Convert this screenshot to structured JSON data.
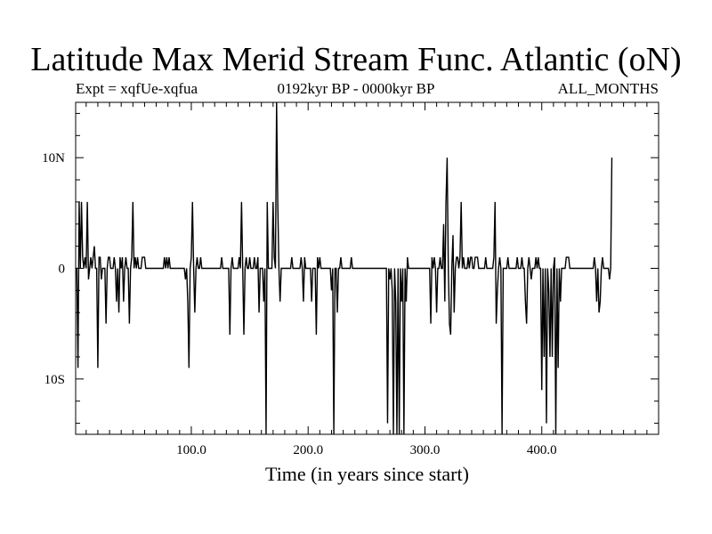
{
  "header": {
    "title": "Latitude Max Merid Stream Func. Atlantic (oN)",
    "experiment": "Expt = xqfUe-xqfua",
    "period": "0192kyr BP - 0000kyr BP",
    "months": "ALL_MONTHS"
  },
  "chart_data": {
    "type": "line",
    "title": "Latitude Max Merid Stream Func. Atlantic (oN)",
    "xlabel": "Time (in years since start)",
    "ylabel": "",
    "xlim": [
      1,
      500
    ],
    "ylim": [
      -15,
      15
    ],
    "x_ticks": [
      100,
      200,
      300,
      400
    ],
    "x_tick_labels": [
      "100.0",
      "200.0",
      "300.0",
      "400.0"
    ],
    "y_ticks": [
      10,
      0,
      -10
    ],
    "y_tick_labels": [
      "10N",
      "0",
      "10S"
    ],
    "grid": false,
    "series": [
      {
        "x_start": 1,
        "x_step": 1,
        "values": [
          0,
          0,
          -9,
          6,
          0,
          6,
          1,
          0,
          1,
          0,
          6,
          -1,
          0,
          1,
          0,
          1,
          2,
          0,
          0,
          -9,
          1,
          1,
          -1,
          0,
          0,
          0,
          -5,
          0,
          1,
          1,
          0,
          0,
          0,
          1,
          0,
          -3,
          0,
          -4,
          1,
          0,
          1,
          -3,
          0,
          1,
          0,
          0,
          -5,
          0,
          1,
          6,
          0,
          1,
          0,
          1,
          0,
          0,
          0,
          1,
          1,
          1,
          0,
          0,
          0,
          0,
          0,
          0,
          0,
          0,
          0,
          0,
          0,
          0,
          0,
          0,
          0,
          0,
          1,
          0,
          1,
          0,
          1,
          0,
          0,
          0,
          0,
          0,
          0,
          0,
          0,
          0,
          0,
          0,
          0,
          0,
          -1,
          0,
          -3,
          -9,
          0,
          1,
          6,
          0,
          -4,
          0,
          1,
          0,
          0,
          1,
          0,
          0,
          0,
          0,
          0,
          0,
          0,
          0,
          0,
          0,
          0,
          0,
          0,
          0,
          0,
          0,
          0,
          1,
          0,
          0,
          0,
          0,
          0,
          0,
          -6,
          0,
          1,
          0,
          0,
          0,
          0,
          0,
          1,
          0,
          6,
          0,
          -6,
          0,
          1,
          0,
          0,
          1,
          0,
          0,
          0,
          1,
          0,
          0,
          1,
          -4,
          0,
          0,
          0,
          -3,
          0,
          -15,
          6,
          0,
          0,
          0,
          0,
          6,
          1,
          0,
          15,
          6,
          0,
          -3,
          0,
          0,
          0,
          0,
          0,
          0,
          0,
          0,
          0,
          1,
          0,
          0,
          0,
          0,
          0,
          0,
          0,
          1,
          0,
          -3,
          1,
          0,
          0,
          0,
          0,
          0,
          -3,
          0,
          0,
          0,
          -6,
          1,
          0,
          1,
          0,
          0,
          0,
          0,
          0,
          0,
          0,
          0,
          0,
          -2,
          0,
          -15,
          0,
          0,
          -4,
          0,
          0,
          1,
          0,
          0,
          0,
          0,
          0,
          0,
          0,
          0,
          1,
          0,
          0,
          0,
          0,
          0,
          0,
          0,
          0,
          0,
          0,
          0,
          0,
          0,
          0,
          0,
          0,
          0,
          0,
          0,
          0,
          0,
          0,
          0,
          0,
          0,
          0,
          0,
          0,
          0,
          0,
          -14,
          0,
          -1,
          0,
          -2,
          -15,
          0,
          -3,
          -15,
          0,
          -15,
          0,
          -3,
          0,
          -15,
          0,
          -3,
          1,
          0,
          0,
          0,
          0,
          0,
          0,
          0,
          0,
          0,
          0,
          0,
          0,
          0,
          0,
          0,
          0,
          0,
          0,
          0,
          -5,
          1,
          0,
          1,
          0,
          -4,
          0,
          0,
          1,
          0,
          0,
          4,
          -3,
          6,
          10,
          0,
          -5,
          -6,
          0,
          3,
          -4,
          0,
          1,
          1,
          0,
          1,
          6,
          0,
          1,
          0,
          0,
          0,
          1,
          0,
          1,
          1,
          0,
          0,
          1,
          1,
          1,
          0,
          0,
          0,
          0,
          0,
          0,
          1,
          0,
          0,
          0,
          0,
          0,
          0,
          1,
          6,
          -5,
          -2,
          0,
          1,
          0,
          -15,
          0,
          0,
          0,
          0,
          1,
          0,
          0,
          0,
          0,
          0,
          0,
          0,
          1,
          0,
          0,
          0,
          1,
          0,
          0,
          -3,
          -5,
          0,
          1,
          0,
          -1,
          0,
          0,
          0,
          1,
          0,
          1,
          0,
          0,
          -11,
          0,
          -8,
          0,
          -14,
          0,
          -2,
          -8,
          0,
          -8,
          0,
          1,
          -15,
          0,
          -9,
          0,
          -3,
          0,
          0,
          0,
          0,
          1,
          1,
          1,
          0,
          0,
          0,
          0,
          0,
          0,
          0,
          0,
          0,
          0,
          0,
          0,
          0,
          0,
          0,
          0,
          0,
          0,
          0,
          0,
          0,
          1,
          0,
          -3,
          0,
          -4,
          -3,
          0,
          1,
          0,
          0,
          0,
          0,
          0,
          -1,
          0,
          10
        ]
      }
    ]
  }
}
